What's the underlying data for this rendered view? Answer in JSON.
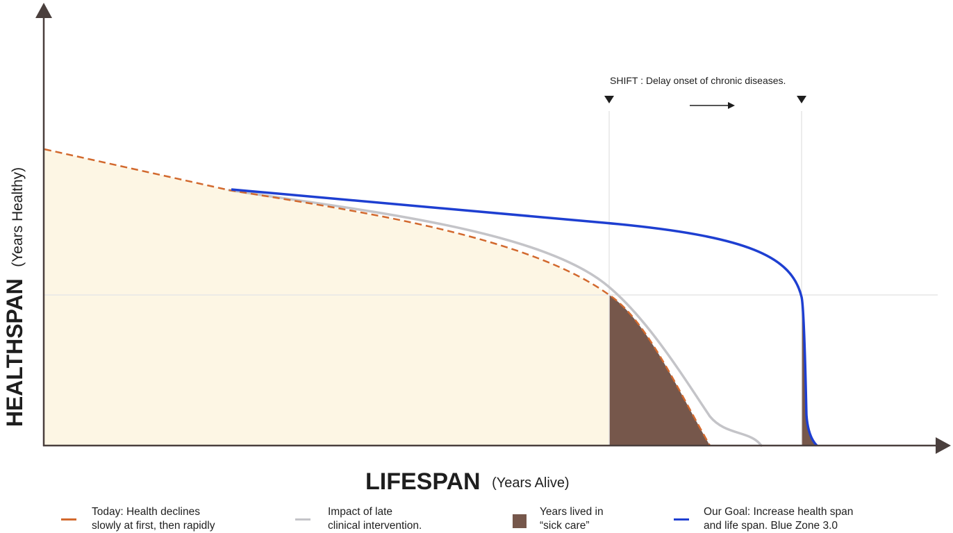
{
  "y_axis": {
    "title": "HEALTHSPAN",
    "subtitle": "(Years Healthy)"
  },
  "x_axis": {
    "title": "LIFESPAN",
    "subtitle": "(Years Alive)"
  },
  "annotation": {
    "shift_text": "SHIFT :  Delay onset of chronic diseases."
  },
  "legend": [
    {
      "kind": "dashed-line",
      "color": "#d2692e",
      "line1": "Today: Health declines",
      "line2": "slowly at first, then rapidly"
    },
    {
      "kind": "line",
      "color": "#c4c4c8",
      "line1": "Impact of late",
      "line2": "clinical intervention."
    },
    {
      "kind": "box",
      "color": "#76574b",
      "line1": "Years lived in",
      "line2": "“sick care”"
    },
    {
      "kind": "line",
      "color": "#1e3fd1",
      "line1": "Our Goal: Increase health span",
      "line2": "and life span. Blue Zone 3.0"
    }
  ],
  "colors": {
    "axis": "#4a3f3d",
    "today_curve": "#d2692e",
    "intervention_curve": "#c4c4c8",
    "goal_curve": "#1e3fd1",
    "sick_care": "#76574b",
    "healthy_area": "#fdf6e4",
    "guide_lines": "#e6e6e6",
    "text": "#1e1e1e"
  }
}
